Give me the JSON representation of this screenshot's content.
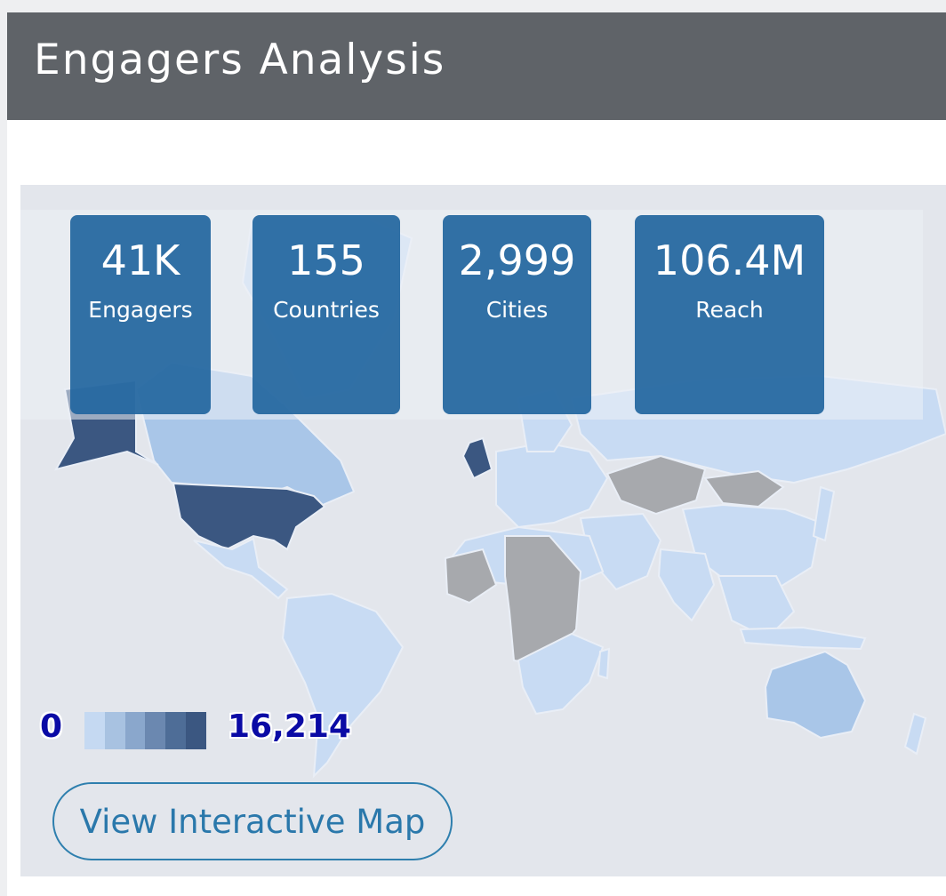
{
  "header": {
    "title": "Engagers Analysis"
  },
  "stats": [
    {
      "value": "41K",
      "label": "Engagers"
    },
    {
      "value": "155",
      "label": "Countries"
    },
    {
      "value": "2,999",
      "label": "Cities"
    },
    {
      "value": "106.4M",
      "label": "Reach"
    }
  ],
  "legend": {
    "min": "0",
    "max": "16,214",
    "colors": [
      "#c5d9f2",
      "#a8c2e1",
      "#8aa7cc",
      "#6b88b0",
      "#4e6d97",
      "#3b5781"
    ]
  },
  "map": {
    "colors": {
      "ocean": "#e3e6ec",
      "low": "#c8dbf3",
      "mid": "#a9c6e8",
      "high": "#3b5781",
      "none": "#a7a9ad",
      "border": "#e9eef6"
    }
  },
  "actions": {
    "view_map_label": "View Interactive Map"
  }
}
